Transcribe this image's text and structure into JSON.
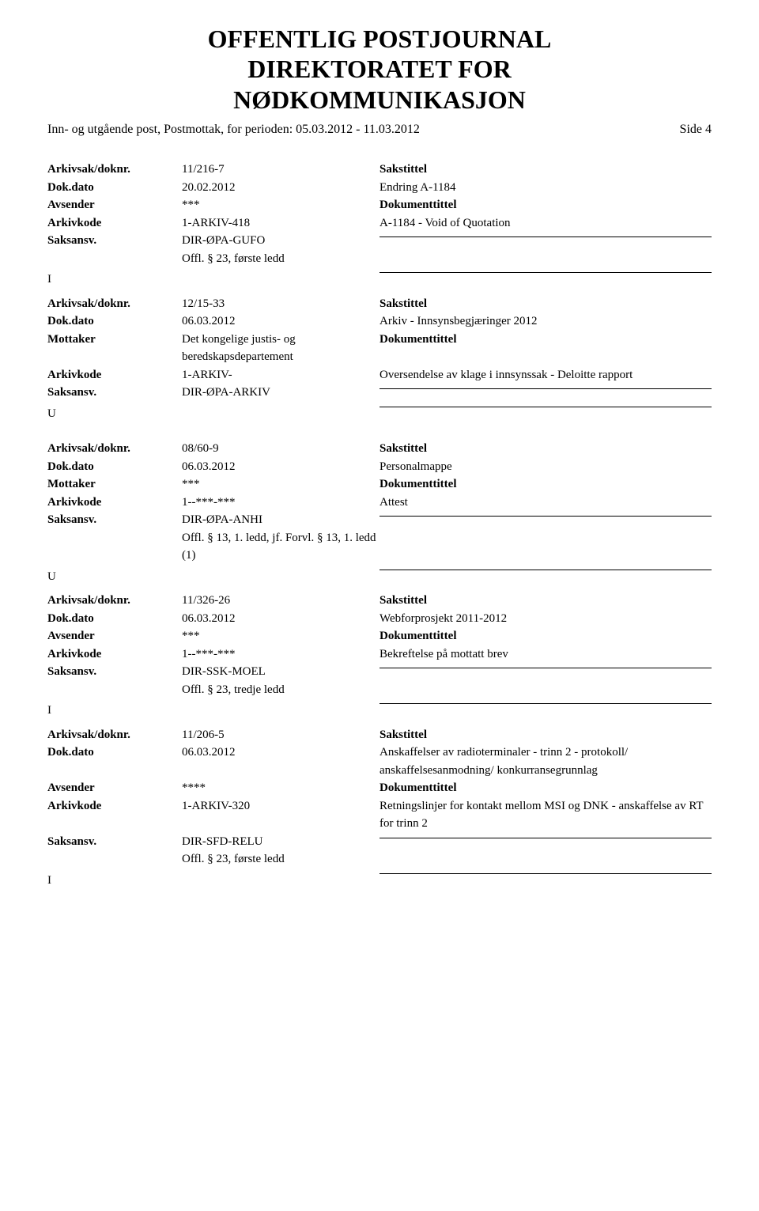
{
  "header": {
    "title_line1": "OFFENTLIG POSTJOURNAL",
    "title_line2": "DIREKTORATET FOR",
    "title_line3": "NØDKOMMUNIKASJON",
    "subtitle": "Inn- og utgående post, Postmottak, for perioden: 05.03.2012 - 11.03.2012",
    "page_label": "Side 4"
  },
  "labels": {
    "arkivsak": "Arkivsak/doknr.",
    "dokdato": "Dok.dato",
    "avsender": "Avsender",
    "mottaker": "Mottaker",
    "arkivkode": "Arkivkode",
    "saksansv": "Saksansv.",
    "sakstittel": "Sakstittel",
    "dokumenttittel": "Dokumenttittel"
  },
  "records": [
    {
      "type_letter": "I",
      "arkivsak": "11/216-7",
      "dokdato": "20.02.2012",
      "party_label": "Avsender",
      "party_value": "***",
      "arkivkode": "1-ARKIV-418",
      "saksansv": "DIR-ØPA-GUFO",
      "restriction": "Offl. § 23, første ledd",
      "sakstittel": "Endring A-1184",
      "dokumenttittel": "A-1184 - Void of Quotation"
    },
    {
      "type_letter": "U",
      "arkivsak": "12/15-33",
      "dokdato": "06.03.2012",
      "party_label": "Mottaker",
      "party_value": "Det kongelige justis- og beredskapsdepartement",
      "arkivkode": "1-ARKIV-",
      "saksansv": "DIR-ØPA-ARKIV",
      "restriction": "",
      "sakstittel": "Arkiv - Innsynsbegjæringer 2012",
      "dokumenttittel": "Oversendelse av klage i innsynssak - Deloitte rapport"
    },
    {
      "type_letter": "U",
      "arkivsak": "08/60-9",
      "dokdato": "06.03.2012",
      "party_label": "Mottaker",
      "party_value": "***",
      "arkivkode": "1--***-***",
      "saksansv": "DIR-ØPA-ANHI",
      "restriction": "Offl. § 13, 1. ledd, jf. Forvl. § 13, 1. ledd (1)",
      "sakstittel": "Personalmappe",
      "dokumenttittel": "Attest"
    },
    {
      "type_letter": "I",
      "arkivsak": "11/326-26",
      "dokdato": "06.03.2012",
      "party_label": "Avsender",
      "party_value": "***",
      "arkivkode": "1--***-***",
      "saksansv": "DIR-SSK-MOEL",
      "restriction": "Offl. § 23, tredje ledd",
      "sakstittel": "Webforprosjekt 2011-2012",
      "dokumenttittel": "Bekreftelse på mottatt brev"
    },
    {
      "type_letter": "I",
      "arkivsak": "11/206-5",
      "dokdato": "06.03.2012",
      "party_label": "Avsender",
      "party_value": "****",
      "arkivkode": "1-ARKIV-320",
      "saksansv": "DIR-SFD-RELU",
      "restriction": "Offl. § 23, første ledd",
      "sakstittel": "Anskaffelser av radioterminaler - trinn 2 - protokoll/ anskaffelsesanmodning/ konkurransegrunnlag",
      "dokumenttittel": "Retningslinjer for kontakt mellom MSI og DNK - anskaffelse av RT for trinn 2"
    }
  ]
}
